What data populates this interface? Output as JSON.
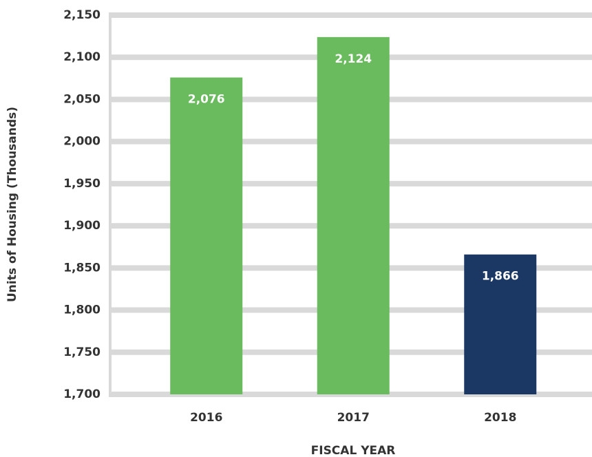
{
  "chart_data": {
    "type": "bar",
    "x_label": "FISCAL YEAR",
    "y_label": "Units of Housing (Thousands)",
    "categories": [
      "2016",
      "2017",
      "2018"
    ],
    "values": [
      2076,
      2124,
      1866
    ],
    "value_labels": [
      "2,076",
      "2,124",
      "1,866"
    ],
    "colors": [
      "#6aba5e",
      "#6aba5e",
      "#1b3864"
    ],
    "ylim": [
      1700,
      2150
    ],
    "yticks": [
      {
        "value": 1700,
        "label": "1,700"
      },
      {
        "value": 1750,
        "label": "1,750"
      },
      {
        "value": 1800,
        "label": "1,800"
      },
      {
        "value": 1850,
        "label": "1,850"
      },
      {
        "value": 1900,
        "label": "1,900"
      },
      {
        "value": 1950,
        "label": "1,950"
      },
      {
        "value": 2000,
        "label": "2,000"
      },
      {
        "value": 2050,
        "label": "2,050"
      },
      {
        "value": 2100,
        "label": "2,100"
      },
      {
        "value": 2150,
        "label": "2,150"
      }
    ],
    "grid": true
  }
}
